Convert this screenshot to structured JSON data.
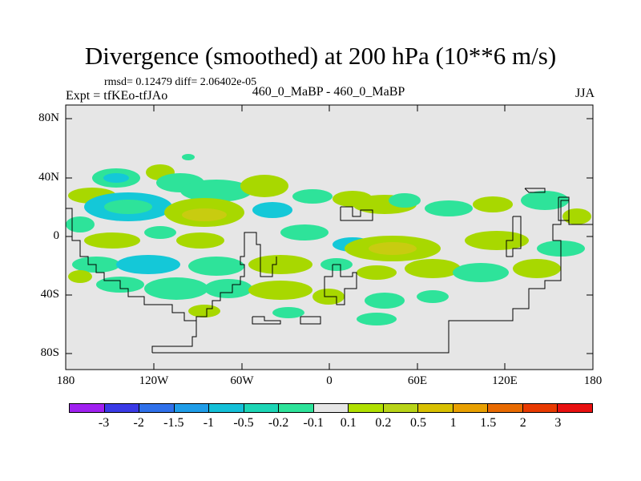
{
  "header": {
    "title": "Divergence (smoothed) at 200 hPa (10**6 m/s)",
    "stats": "rmsd= 0.12479 diff= 2.06402e-05",
    "experiment": "Expt = tfKEo-tfJAo",
    "center_label": "460_0_MaBP - 460_0_MaBP",
    "season": "JJA"
  },
  "axes": {
    "y_labels": [
      "80N",
      "40N",
      "0",
      "40S",
      "80S"
    ],
    "x_labels": [
      "180",
      "120W",
      "60W",
      "0",
      "60E",
      "120E",
      "180"
    ]
  },
  "colorbar": {
    "labels": [
      "-3",
      "-2",
      "-1.5",
      "-1",
      "-0.5",
      "-0.2",
      "-0.1",
      "0.1",
      "0.2",
      "0.5",
      "1",
      "1.5",
      "2",
      "3"
    ],
    "colors": [
      "#a020f0",
      "#3a3ae6",
      "#2f70ea",
      "#1f9de8",
      "#14c0d8",
      "#1dd6b6",
      "#2ee39a",
      "#e6e6e6",
      "#b0e000",
      "#b8d418",
      "#d8c000",
      "#e8a000",
      "#e86a00",
      "#e83a00",
      "#e81010"
    ]
  },
  "map": {
    "background": "#e6e6e6",
    "colors": {
      "pos_light": "#a8d800",
      "pos": "#c8cc10",
      "neg_light": "#2ee39a",
      "neg": "#14c8d8"
    }
  }
}
